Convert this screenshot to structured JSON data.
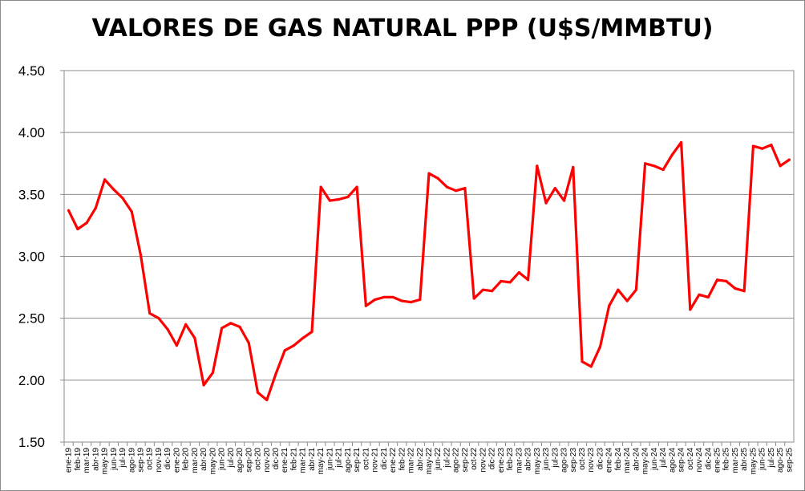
{
  "chart_data": {
    "type": "line",
    "title": "VALORES DE GAS NATURAL PPP (U$S/MMBTU)",
    "xlabel": "",
    "ylabel": "",
    "ylim": [
      1.5,
      4.5
    ],
    "yticks": [
      "1.50",
      "2.00",
      "2.50",
      "3.00",
      "3.50",
      "4.00",
      "4.50"
    ],
    "grid": true,
    "legend": "none",
    "line_color": "#ff0000",
    "categories": [
      "ene-19",
      "feb-19",
      "mar-19",
      "abr-19",
      "may-19",
      "jun-19",
      "jul-19",
      "ago-19",
      "sep-19",
      "oct-19",
      "nov-19",
      "dic-19",
      "ene-20",
      "feb-20",
      "mar-20",
      "abr-20",
      "may-20",
      "jun-20",
      "jul-20",
      "ago-20",
      "sep-20",
      "oct-20",
      "nov-20",
      "dic-20",
      "ene-21",
      "feb-21",
      "mar-21",
      "abr-21",
      "may-21",
      "jun-21",
      "jul-21",
      "ago-21",
      "sep-21",
      "oct-21",
      "nov-21",
      "dic-21",
      "ene-22",
      "feb-22",
      "mar-22",
      "abr-22",
      "may-22",
      "jun-22",
      "jul-22",
      "ago-22",
      "sep-22",
      "oct-22",
      "nov-22",
      "dic-22",
      "ene-23",
      "feb-23",
      "mar-23",
      "abr-23",
      "may-23",
      "jun-23",
      "jul-23",
      "ago-23",
      "sep-23",
      "oct-23",
      "nov-23",
      "dic-23",
      "ene-24",
      "feb-24",
      "mar-24",
      "abr-24",
      "may-24",
      "jun-24",
      "jul-24",
      "ago-24",
      "sep-24",
      "oct-24",
      "nov-24",
      "dic-24",
      "ene-25",
      "feb-25",
      "mar-25",
      "abr-25",
      "may-25",
      "jun-25",
      "jul-25",
      "ago-25",
      "sep-25"
    ],
    "series": [
      {
        "values": [
          3.37,
          3.22,
          3.27,
          3.39,
          3.62,
          3.54,
          3.47,
          3.36,
          3.01,
          2.54,
          2.5,
          2.41,
          2.28,
          2.45,
          2.34,
          1.96,
          2.06,
          2.42,
          2.46,
          2.43,
          2.3,
          1.9,
          1.84,
          2.05,
          2.24,
          2.28,
          2.34,
          2.39,
          3.56,
          3.45,
          3.46,
          3.48,
          3.56,
          2.6,
          2.65,
          2.67,
          2.67,
          2.64,
          2.63,
          2.65,
          3.67,
          3.63,
          3.56,
          3.53,
          3.55,
          2.66,
          2.73,
          2.72,
          2.8,
          2.79,
          2.87,
          2.81,
          3.73,
          3.43,
          3.55,
          3.45,
          3.72,
          2.15,
          2.11,
          2.27,
          2.6,
          2.73,
          2.64,
          2.73,
          3.75,
          3.73,
          3.7,
          3.82,
          3.92,
          2.57,
          2.69,
          2.67,
          2.81,
          2.8,
          2.74,
          2.72,
          3.89,
          3.87,
          3.9,
          3.73,
          3.78
        ]
      }
    ]
  }
}
